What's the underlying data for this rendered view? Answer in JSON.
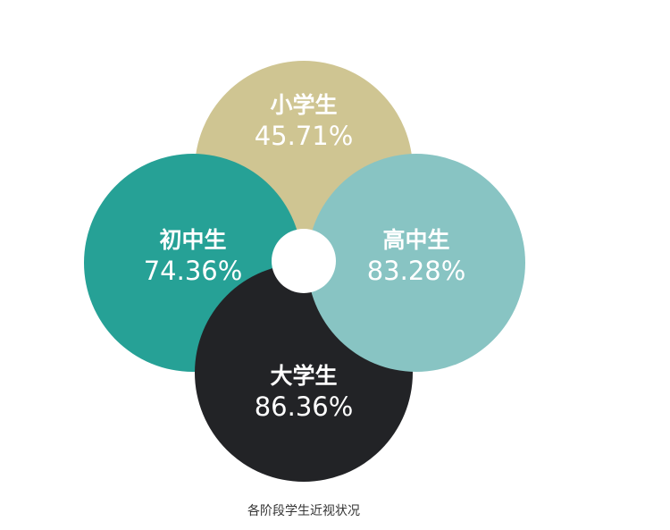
{
  "items": [
    {
      "label": "小学生",
      "value": "45.71%",
      "color": "#cfc592"
    },
    {
      "label": "初中生",
      "value": "74.36%",
      "color": "#26a196"
    },
    {
      "label": "大学生",
      "value": "86.36%",
      "color": "#222326"
    },
    {
      "label": "高中生",
      "value": "83.28%",
      "color": "#88c4c3"
    }
  ],
  "caption": "各阶段学生近视状况"
}
